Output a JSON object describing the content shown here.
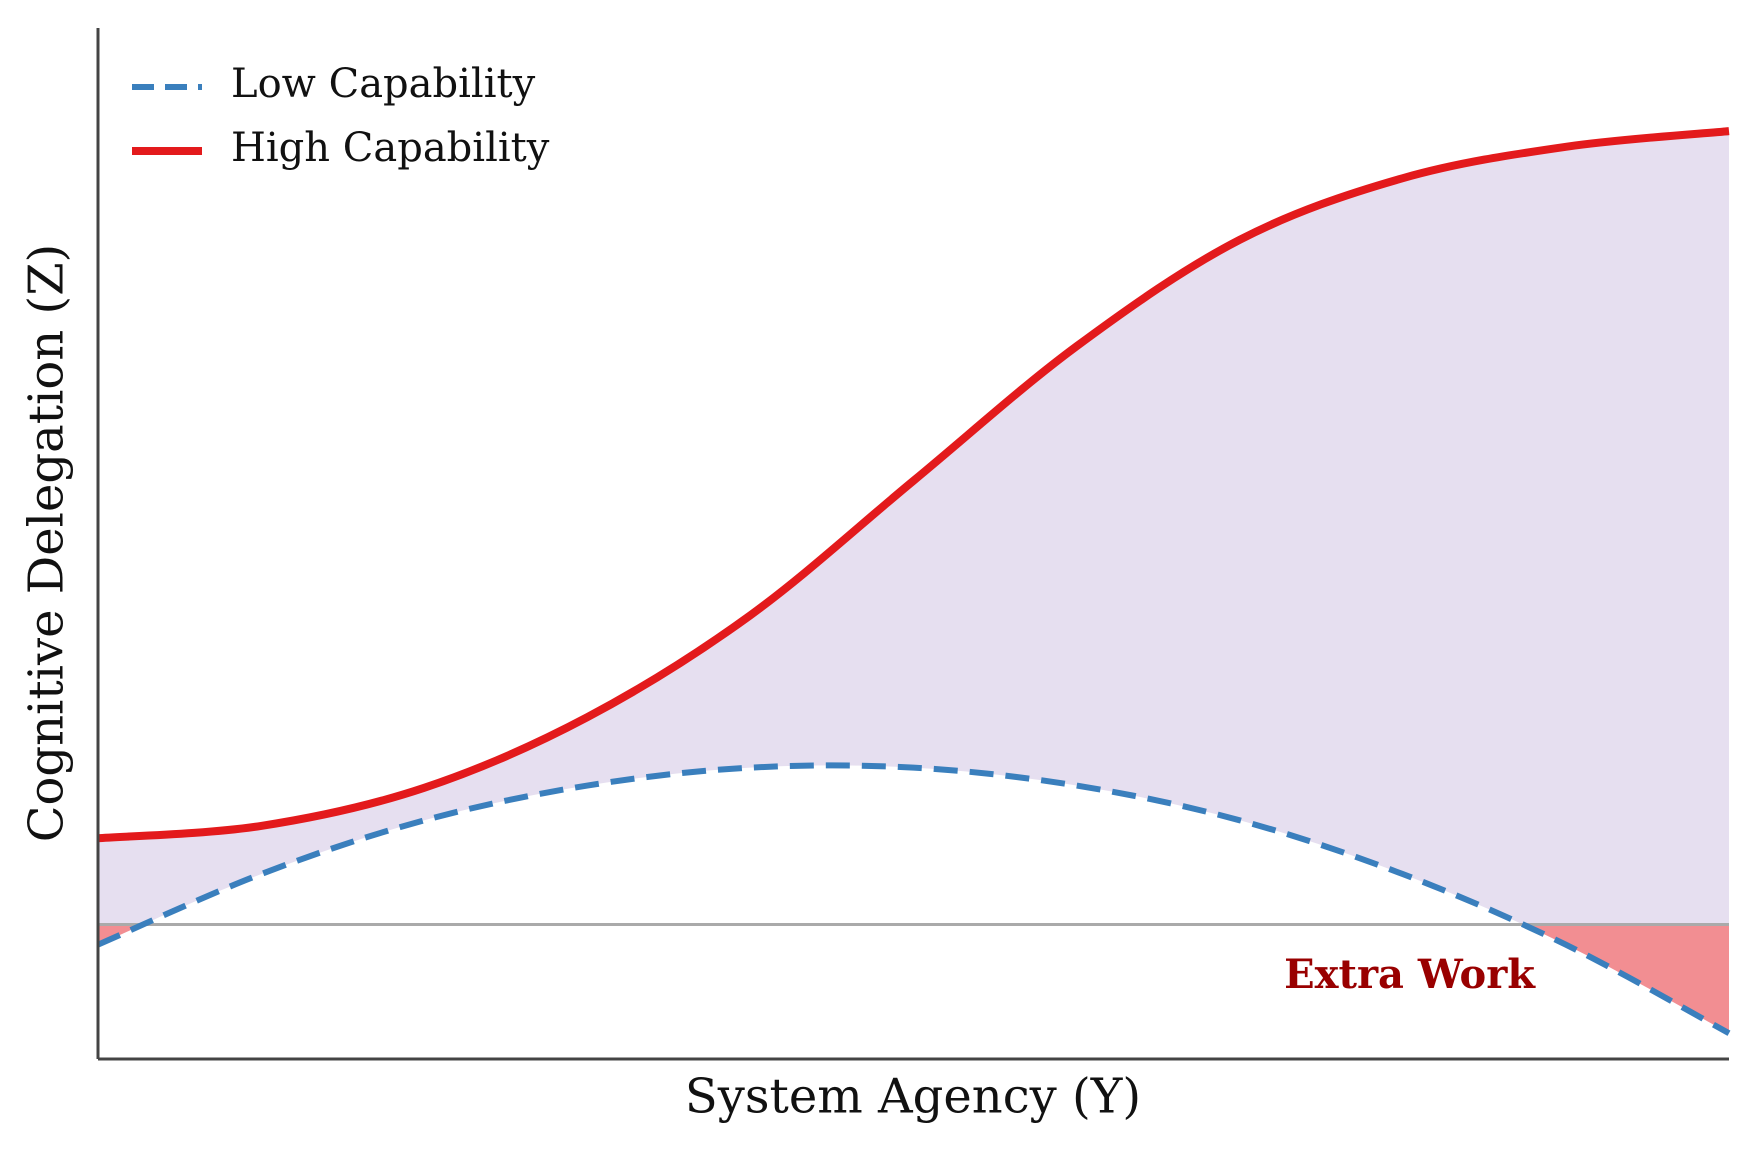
{
  "chart_data": {
    "type": "line",
    "xlabel": "System Agency (Y)",
    "ylabel": "Cognitive Delegation (Z)",
    "x": [
      0,
      1,
      2,
      3,
      4,
      5,
      6,
      7,
      8,
      9,
      10
    ],
    "series": [
      {
        "name": "Low Capability",
        "color": "#3a7fbd",
        "style": "dashed",
        "values": [
          -0.18,
          0.45,
          0.93,
          1.24,
          1.4,
          1.4,
          1.24,
          0.93,
          0.45,
          -0.18,
          -0.97
        ]
      },
      {
        "name": "High Capability",
        "color": "#e31a1c",
        "style": "solid",
        "values": [
          0.77,
          0.88,
          1.22,
          1.85,
          2.76,
          3.96,
          5.16,
          6.11,
          6.66,
          6.94,
          7.08
        ]
      }
    ],
    "baseline": 0,
    "annotation": "Extra Work",
    "xlim": [
      0,
      10
    ],
    "ylim": [
      -1.2,
      8.0
    ],
    "legend": "upper left"
  }
}
